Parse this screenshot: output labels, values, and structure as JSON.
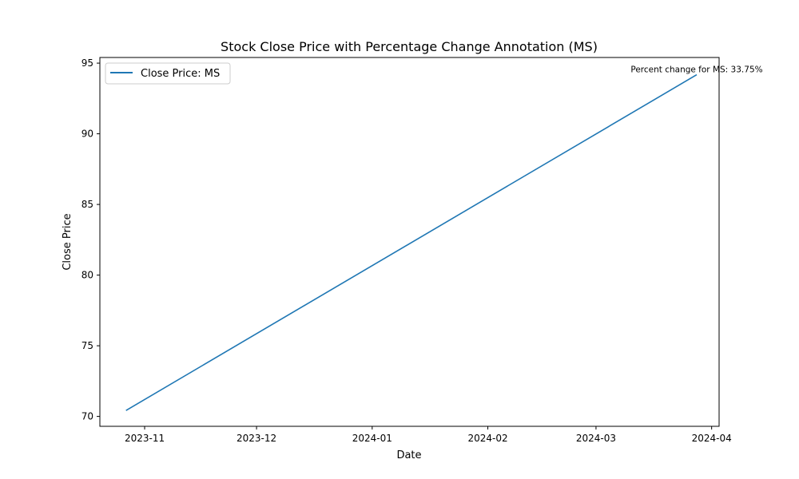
{
  "chart_data": {
    "type": "line",
    "title": "Stock Close Price with Percentage Change Annotation (MS)",
    "xlabel": "Date",
    "ylabel": "Close Price",
    "x_type": "date",
    "xlim": [
      "2023-10-20",
      "2024-04-03"
    ],
    "ylim": [
      69.3,
      95.4
    ],
    "x_ticks": [
      {
        "date": "2023-11-01",
        "label": "2023-11"
      },
      {
        "date": "2023-12-01",
        "label": "2023-12"
      },
      {
        "date": "2024-01-01",
        "label": "2024-01"
      },
      {
        "date": "2024-02-01",
        "label": "2024-02"
      },
      {
        "date": "2024-03-01",
        "label": "2024-03"
      },
      {
        "date": "2024-04-01",
        "label": "2024-04"
      }
    ],
    "y_ticks": [
      70,
      75,
      80,
      85,
      90,
      95
    ],
    "grid": false,
    "legend_placement": "top-left",
    "series": [
      {
        "name": "Close Price: MS",
        "color": "#1f77b4",
        "x": [
          "2023-10-27",
          "2024-03-28"
        ],
        "y": [
          70.42,
          94.18
        ]
      }
    ],
    "annotation": {
      "text": "Percent change for MS: 33.75%",
      "x": "2024-03-28",
      "y": 94.18
    }
  }
}
